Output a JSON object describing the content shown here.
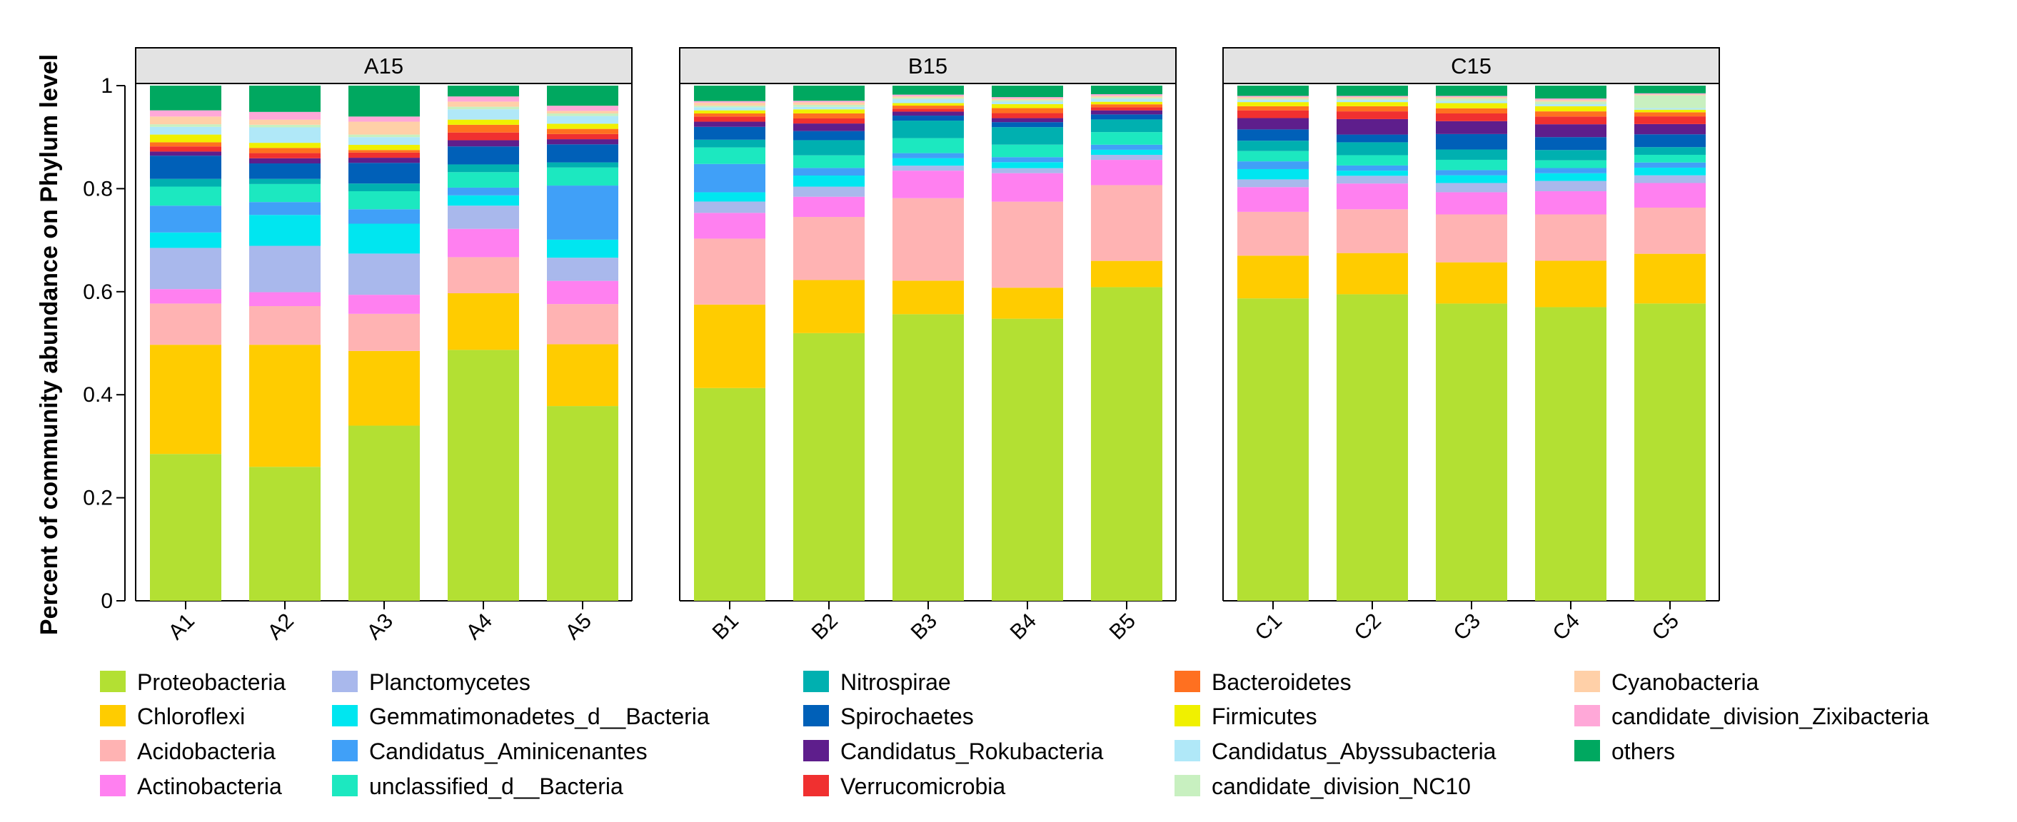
{
  "chart_data": {
    "type": "bar",
    "stacked": true,
    "ylabel": "Percent of community abundance on Phylum level",
    "ylim": [
      0,
      1
    ],
    "yticks": [
      "0",
      "0.2",
      "0.4",
      "0.6",
      "0.8",
      "1"
    ],
    "phyla": [
      {
        "name": "Proteobacteria",
        "color": "#B3E033"
      },
      {
        "name": "Chloroflexi",
        "color": "#FFCC00"
      },
      {
        "name": "Acidobacteria",
        "color": "#FFB3B3"
      },
      {
        "name": "Actinobacteria",
        "color": "#FF80F0"
      },
      {
        "name": "Planctomycetes",
        "color": "#A9B8EC"
      },
      {
        "name": "Gemmatimonadetes_d__Bacteria",
        "color": "#00E6F0"
      },
      {
        "name": "Candidatus_Aminicenantes",
        "color": "#40A0F8"
      },
      {
        "name": "unclassified_d__Bacteria",
        "color": "#1CE8C0"
      },
      {
        "name": "Nitrospirae",
        "color": "#00B0B0"
      },
      {
        "name": "Spirochaetes",
        "color": "#0060B8"
      },
      {
        "name": "Candidatus_Rokubacteria",
        "color": "#5E1E8C"
      },
      {
        "name": "Verrucomicrobia",
        "color": "#F03030"
      },
      {
        "name": "Bacteroidetes",
        "color": "#FF7020"
      },
      {
        "name": "Firmicutes",
        "color": "#F0F000"
      },
      {
        "name": "Candidatus_Abyssubacteria",
        "color": "#B0E8F8"
      },
      {
        "name": "candidate_division_NC10",
        "color": "#C8F0C0"
      },
      {
        "name": "Cyanobacteria",
        "color": "#FFD0A8"
      },
      {
        "name": "candidate_division_Zixibacteria",
        "color": "#FFA8D8"
      },
      {
        "name": "others",
        "color": "#00A860"
      }
    ],
    "panels": [
      {
        "name": "A15",
        "samples": [
          {
            "name": "A1",
            "values": [
              0.285,
              0.212,
              0.08,
              0.028,
              0.08,
              0.03,
              0.052,
              0.037,
              0.015,
              0.045,
              0.008,
              0.01,
              0.008,
              0.015,
              0.015,
              0.005,
              0.015,
              0.012,
              0.048
            ]
          },
          {
            "name": "A2",
            "values": [
              0.26,
              0.237,
              0.075,
              0.027,
              0.09,
              0.06,
              0.025,
              0.035,
              0.01,
              0.03,
              0.01,
              0.01,
              0.01,
              0.01,
              0.03,
              0.005,
              0.01,
              0.015,
              0.051
            ]
          },
          {
            "name": "A3",
            "values": [
              0.34,
              0.145,
              0.072,
              0.037,
              0.08,
              0.058,
              0.028,
              0.035,
              0.015,
              0.04,
              0.01,
              0.01,
              0.005,
              0.01,
              0.015,
              0.005,
              0.025,
              0.01,
              0.06
            ]
          },
          {
            "name": "A4",
            "values": [
              0.487,
              0.11,
              0.07,
              0.055,
              0.045,
              0.02,
              0.015,
              0.03,
              0.015,
              0.035,
              0.012,
              0.015,
              0.015,
              0.01,
              0.02,
              0.005,
              0.01,
              0.01,
              0.021
            ]
          },
          {
            "name": "A5",
            "values": [
              0.378,
              0.12,
              0.078,
              0.045,
              0.045,
              0.035,
              0.105,
              0.035,
              0.01,
              0.035,
              0.01,
              0.01,
              0.01,
              0.01,
              0.015,
              0.005,
              0.005,
              0.01,
              0.039
            ]
          }
        ]
      },
      {
        "name": "B15",
        "samples": [
          {
            "name": "B1",
            "values": [
              0.413,
              0.162,
              0.128,
              0.05,
              0.022,
              0.018,
              0.055,
              0.032,
              0.015,
              0.025,
              0.01,
              0.01,
              0.006,
              0.006,
              0.006,
              0.003,
              0.006,
              0.003,
              0.03
            ]
          },
          {
            "name": "B2",
            "values": [
              0.53,
              0.105,
              0.125,
              0.04,
              0.02,
              0.022,
              0.015,
              0.025,
              0.03,
              0.018,
              0.015,
              0.01,
              0.01,
              0.008,
              0.005,
              0.004,
              0.005,
              0.003,
              0.03
            ]
          },
          {
            "name": "B3",
            "values": [
              0.573,
              0.067,
              0.165,
              0.055,
              0.01,
              0.015,
              0.01,
              0.03,
              0.035,
              0.01,
              0.008,
              0.006,
              0.006,
              0.005,
              0.008,
              0.003,
              0.003,
              0.003,
              0.018
            ]
          },
          {
            "name": "B4",
            "values": [
              0.564,
              0.062,
              0.172,
              0.057,
              0.01,
              0.012,
              0.01,
              0.025,
              0.035,
              0.01,
              0.008,
              0.01,
              0.01,
              0.008,
              0.005,
              0.003,
              0.003,
              0.003,
              0.023
            ]
          },
          {
            "name": "B5",
            "values": [
              0.621,
              0.052,
              0.15,
              0.05,
              0.01,
              0.01,
              0.01,
              0.025,
              0.025,
              0.01,
              0.008,
              0.006,
              0.006,
              0.005,
              0.006,
              0.003,
              0.003,
              0.003,
              0.017
            ]
          }
        ]
      },
      {
        "name": "C15",
        "samples": [
          {
            "name": "C1",
            "values": [
              0.587,
              0.083,
              0.085,
              0.048,
              0.015,
              0.02,
              0.015,
              0.02,
              0.02,
              0.022,
              0.022,
              0.015,
              0.008,
              0.008,
              0.004,
              0.003,
              0.003,
              0.002,
              0.02
            ]
          },
          {
            "name": "C2",
            "values": [
              0.595,
              0.08,
              0.085,
              0.05,
              0.015,
              0.01,
              0.01,
              0.02,
              0.025,
              0.015,
              0.03,
              0.015,
              0.01,
              0.008,
              0.004,
              0.003,
              0.003,
              0.002,
              0.02
            ]
          },
          {
            "name": "C3",
            "values": [
              0.577,
              0.08,
              0.093,
              0.043,
              0.018,
              0.015,
              0.01,
              0.02,
              0.02,
              0.03,
              0.025,
              0.015,
              0.01,
              0.01,
              0.004,
              0.005,
              0.003,
              0.002,
              0.02
            ]
          },
          {
            "name": "C4",
            "values": [
              0.57,
              0.09,
              0.09,
              0.045,
              0.02,
              0.015,
              0.01,
              0.015,
              0.02,
              0.025,
              0.025,
              0.015,
              0.01,
              0.01,
              0.004,
              0.005,
              0.003,
              0.003,
              0.025
            ]
          },
          {
            "name": "C5",
            "values": [
              0.58,
              0.097,
              0.09,
              0.048,
              0.015,
              0.015,
              0.01,
              0.015,
              0.015,
              0.025,
              0.02,
              0.015,
              0.008,
              0.005,
              0.003,
              0.025,
              0.002,
              0.002,
              0.015
            ]
          }
        ]
      }
    ]
  }
}
